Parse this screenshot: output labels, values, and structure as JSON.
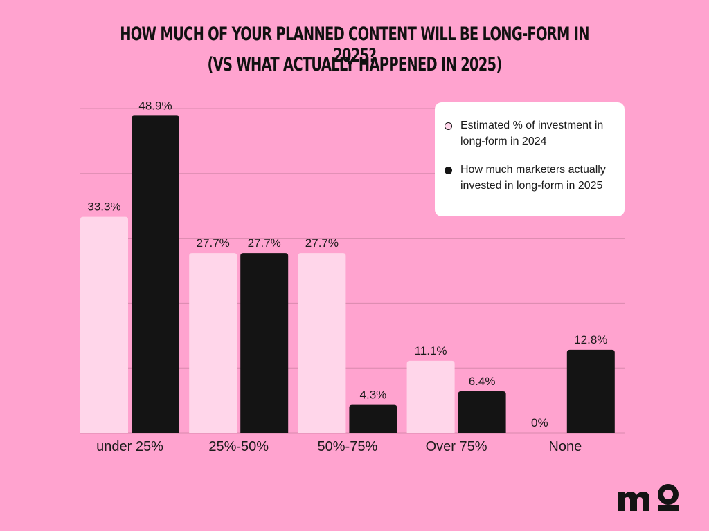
{
  "title_line1": "HOW MUCH OF YOUR PLANNED CONTENT WILL BE LONG-FORM IN 2025?",
  "title_line2": "(VS WHAT ACTUALLY HAPPENED IN 2025)",
  "chart_data": {
    "type": "bar",
    "title": "HOW MUCH OF YOUR PLANNED CONTENT WILL BE LONG-FORM IN 2025? (VS WHAT ACTUALLY HAPPENED IN 2025)",
    "categories": [
      "under 25%",
      "25%-50%",
      "50%-75%",
      "Over 75%",
      "None"
    ],
    "series": [
      {
        "name": "Estimated % of investment in long-form in 2024",
        "values": [
          33.3,
          27.7,
          27.7,
          11.1,
          0
        ],
        "labels": [
          "33.3%",
          "27.7%",
          "27.7%",
          "11.1%",
          "0%"
        ],
        "color": "#ffd6ea"
      },
      {
        "name": "How much marketers actually invested in long-form in 2025",
        "values": [
          48.9,
          27.7,
          4.3,
          6.4,
          12.8
        ],
        "labels": [
          "48.9%",
          "27.7%",
          "4.3%",
          "6.4%",
          "12.8%"
        ],
        "color": "#141414"
      }
    ],
    "ylim": [
      0,
      50
    ],
    "grid": true,
    "legend_position": "top-right"
  },
  "colors": {
    "background": "#ffa3cf",
    "gridline": "#d98aae",
    "text": "#1a1a1a"
  }
}
